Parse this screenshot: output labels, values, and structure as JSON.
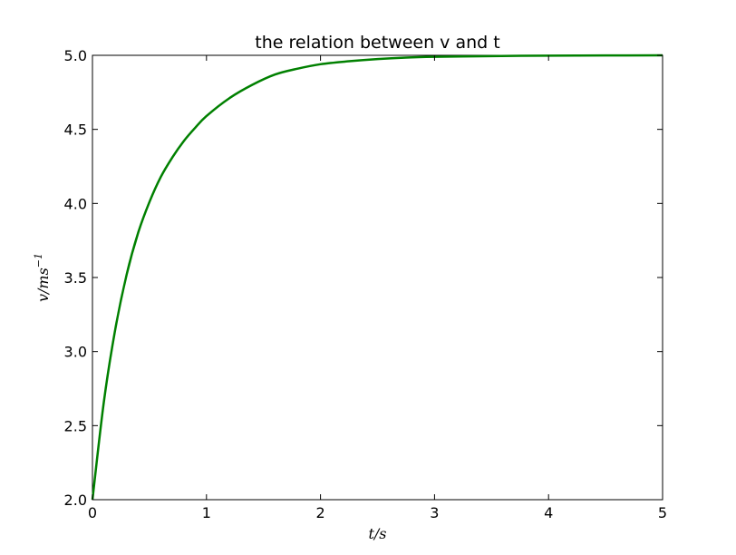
{
  "chart_data": {
    "type": "line",
    "title": "the relation between v and t",
    "xlabel": "t/s",
    "ylabel_base": "v/ms",
    "ylabel_exp": "−1",
    "xlim": [
      0,
      5
    ],
    "ylim": [
      2.0,
      5.0
    ],
    "xticks": [
      0,
      1,
      2,
      3,
      4,
      5
    ],
    "xtick_labels": [
      "0",
      "1",
      "2",
      "3",
      "4",
      "5"
    ],
    "yticks": [
      2.0,
      2.5,
      3.0,
      3.5,
      4.0,
      4.5,
      5.0
    ],
    "ytick_labels": [
      "2.0",
      "2.5",
      "3.0",
      "3.5",
      "4.0",
      "4.5",
      "5.0"
    ],
    "grid": false,
    "series": [
      {
        "color": "#008000",
        "x": [
          0,
          0.1,
          0.2,
          0.3,
          0.4,
          0.5,
          0.6,
          0.7,
          0.8,
          0.9,
          1.0,
          1.2,
          1.4,
          1.6,
          1.8,
          2.0,
          2.25,
          2.5,
          2.75,
          3.0,
          3.5,
          4.0,
          4.5,
          5.0
        ],
        "y": [
          2.0,
          2.66,
          3.15,
          3.52,
          3.8,
          4.01,
          4.18,
          4.31,
          4.42,
          4.51,
          4.59,
          4.71,
          4.8,
          4.87,
          4.91,
          4.94,
          4.96,
          4.975,
          4.985,
          4.99,
          4.995,
          4.998,
          4.999,
          5.0
        ]
      }
    ]
  }
}
